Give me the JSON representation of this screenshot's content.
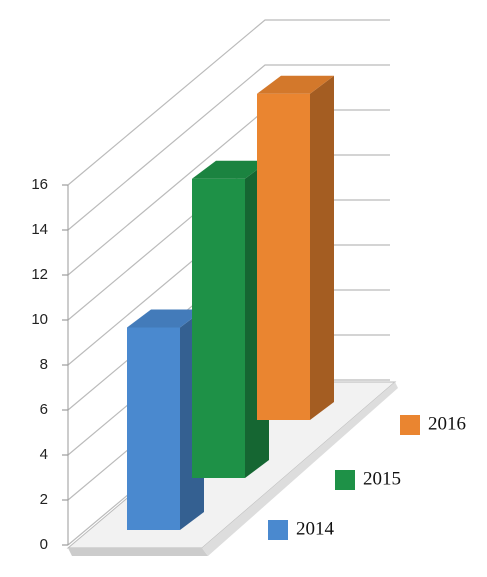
{
  "chart_data": {
    "type": "bar3d",
    "categories": [
      "2014",
      "2015",
      "2016"
    ],
    "values": [
      9,
      13.3,
      14.5
    ],
    "colors": [
      "#4a89cf",
      "#1e9147",
      "#ea8530"
    ],
    "ylim": [
      0,
      16
    ],
    "yticks": [
      0,
      2,
      4,
      6,
      8,
      10,
      12,
      14,
      16
    ],
    "grid": true
  }
}
